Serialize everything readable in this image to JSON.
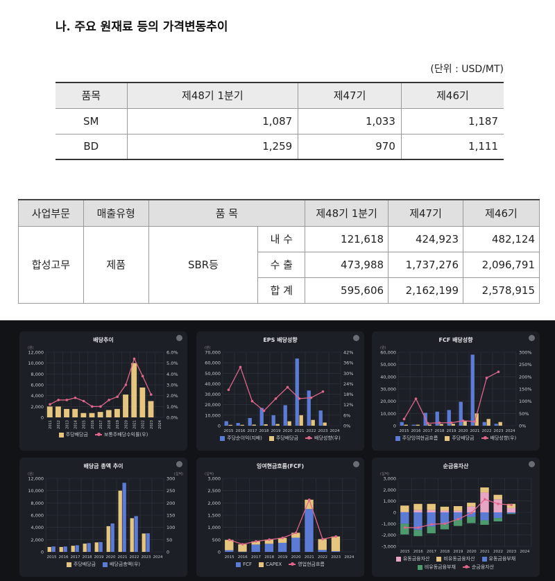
{
  "section_title": "나. 주요 원재료 등의 가격변동추이",
  "unit_note": "(단위 : USD/MT)",
  "price_table": {
    "headers": [
      "품목",
      "제48기 1분기",
      "제47기",
      "제46기"
    ],
    "rows": [
      [
        "SM",
        "1,087",
        "1,033",
        "1,187"
      ],
      [
        "BD",
        "1,259",
        "970",
        "1,111"
      ]
    ]
  },
  "sales_table": {
    "headers": [
      "사업부문",
      "매출유형",
      "품 목",
      "제48기 1분기",
      "제47기",
      "제46기"
    ],
    "segment": "합성고무",
    "type": "제품",
    "item": "SBR등",
    "rows": [
      [
        "내 수",
        "121,618",
        "424,923",
        "482,124"
      ],
      [
        "수 출",
        "473,988",
        "1,737,276",
        "2,096,791"
      ],
      [
        "합 계",
        "595,606",
        "2,162,199",
        "2,578,915"
      ]
    ]
  },
  "chart_data": [
    {
      "type": "bar",
      "title": "배당추이",
      "unit_left": "(원)",
      "rotate_x": true,
      "categories": [
        "2011",
        "2012",
        "2013",
        "2014",
        "2015",
        "2016",
        "2017",
        "2018",
        "2019",
        "2020",
        "2021",
        "2022",
        "2023",
        "2024"
      ],
      "left_axis": {
        "min": 0,
        "max": 12000,
        "step": 2000
      },
      "right_axis": {
        "min": 0,
        "max": 6,
        "step": 1,
        "suffix": "%",
        "decimals": 1
      },
      "grid": true,
      "series": [
        {
          "name": "주당배당금",
          "kind": "bar",
          "axis": "left",
          "color": "#e6c57e",
          "stack": "a",
          "values": [
            2000,
            2000,
            1550,
            1550,
            800,
            800,
            1000,
            1350,
            1550,
            4200,
            10000,
            5500,
            3000,
            null
          ]
        },
        {
          "name": "보통주배당수익률(우)",
          "kind": "line",
          "axis": "right",
          "color": "#e0668a",
          "values": [
            1.2,
            1.6,
            1.6,
            1.8,
            1.5,
            1.0,
            1.0,
            1.6,
            1.9,
            3.0,
            5.4,
            3.8,
            2.1,
            null
          ]
        }
      ]
    },
    {
      "type": "bar",
      "title": "EPS 배당성향",
      "unit_left": "(원)",
      "categories": [
        "2015",
        "2016",
        "2017",
        "2018",
        "2019",
        "2020",
        "2021",
        "2022",
        "2023",
        "2024"
      ],
      "left_axis": {
        "min": 0,
        "max": 70000,
        "step": 10000
      },
      "right_axis": {
        "min": 0,
        "max": 42,
        "step": 6,
        "suffix": "%",
        "decimals": 0
      },
      "grid": true,
      "series": [
        {
          "name": "주당순이익(지배)",
          "kind": "bar",
          "axis": "left",
          "color": "#5b7bd5",
          "stack": "a",
          "values": [
            4300,
            2600,
            7300,
            17000,
            10000,
            19500,
            64000,
            33500,
            14500,
            null
          ]
        },
        {
          "name": "주당배당금",
          "kind": "bar",
          "axis": "left",
          "color": "#e6c57e",
          "stack": "b",
          "values": [
            800,
            800,
            1000,
            1350,
            1550,
            4200,
            10000,
            5500,
            3000,
            null
          ]
        },
        {
          "name": "배당성향(우)",
          "kind": "line",
          "axis": "right",
          "color": "#e0668a",
          "values": [
            20.5,
            33.5,
            14,
            8.5,
            15.5,
            22,
            15.5,
            16,
            19.5,
            null
          ]
        }
      ]
    },
    {
      "type": "bar",
      "title": "FCF 배당성향",
      "unit_left": "(원)",
      "categories": [
        "2015",
        "2016",
        "2017",
        "2018",
        "2019",
        "2020",
        "2021",
        "2022",
        "2023",
        "2024"
      ],
      "left_axis": {
        "min": 0,
        "max": 60000,
        "step": 10000
      },
      "right_axis": {
        "min": 0,
        "max": 300,
        "step": 50,
        "suffix": "%",
        "decimals": 0
      },
      "grid": true,
      "series": [
        {
          "name": "주당잉여현금흐름",
          "kind": "bar",
          "axis": "left",
          "color": "#5b7bd5",
          "stack": "a",
          "values": [
            3000,
            800,
            10500,
            11500,
            12800,
            19500,
            58000,
            3000,
            1500,
            null
          ]
        },
        {
          "name": "주당배당금",
          "kind": "bar",
          "axis": "left",
          "color": "#e6c57e",
          "stack": "b",
          "values": [
            800,
            800,
            1000,
            1350,
            1550,
            4200,
            10000,
            5500,
            3000,
            null
          ]
        },
        {
          "name": "배당성향(우)",
          "kind": "line",
          "axis": "right",
          "color": "#e0668a",
          "values": [
            27,
            110,
            10,
            12,
            12,
            20,
            17,
            195,
            220,
            null
          ]
        }
      ]
    },
    {
      "type": "bar",
      "title": "배당금 총액 추이",
      "unit_left": "(원)",
      "unit_right": "(십억)",
      "categories": [
        "2015",
        "2016",
        "2017",
        "2018",
        "2019",
        "2020",
        "2021",
        "2022",
        "2023",
        "2024"
      ],
      "left_axis": {
        "min": 0,
        "max": 12000,
        "step": 2000
      },
      "right_axis": {
        "min": 0,
        "max": 300,
        "step": 50,
        "suffix": "",
        "decimals": 0
      },
      "grid": true,
      "series": [
        {
          "name": "주당배당금",
          "kind": "bar",
          "axis": "left",
          "color": "#e6c57e",
          "stack": "a",
          "values": [
            800,
            800,
            1000,
            1350,
            1550,
            4200,
            10000,
            5500,
            3000,
            null
          ]
        },
        {
          "name": "배당금총액(우)",
          "kind": "bar",
          "axis": "right",
          "color": "#5b7bd5",
          "stack": "b",
          "values": [
            22,
            22,
            27,
            36,
            40,
            116,
            282,
            146,
            76,
            null
          ]
        }
      ]
    },
    {
      "type": "bar",
      "title": "잉여현금흐름(FCF)",
      "unit_left": "(십억)",
      "categories": [
        "2015",
        "2016",
        "2017",
        "2018",
        "2019",
        "2020",
        "2021",
        "2022",
        "2023",
        "2024"
      ],
      "left_axis": {
        "min": 0,
        "max": 3000,
        "step": 500
      },
      "grid": true,
      "series": [
        {
          "name": "FCF",
          "kind": "bar",
          "axis": "left",
          "color": "#5b7bd5",
          "stack": "a",
          "values": [
            70,
            10,
            300,
            330,
            370,
            580,
            1750,
            80,
            30,
            null
          ]
        },
        {
          "name": "CAPEX",
          "kind": "bar",
          "axis": "left",
          "color": "#e6c57e",
          "stack": "a",
          "values": [
            420,
            300,
            130,
            170,
            200,
            200,
            380,
            440,
            600,
            null
          ]
        },
        {
          "name": "영업현금흐름",
          "kind": "line",
          "axis": "left",
          "color": "#e0668a",
          "values": [
            490,
            310,
            430,
            500,
            570,
            780,
            2130,
            520,
            630,
            null
          ]
        }
      ]
    },
    {
      "type": "bar",
      "title": "순금융자산",
      "unit_left": "(십억)",
      "categories": [
        "2015",
        "2016",
        "2017",
        "2018",
        "2019",
        "2020",
        "2021",
        "2022",
        "2023",
        "2024"
      ],
      "left_axis": {
        "min": -3000,
        "max": 3000,
        "step": 1000
      },
      "grid": true,
      "series": [
        {
          "name": "유동금융자산",
          "kind": "bar",
          "axis": "left",
          "color": "#e8a6c4",
          "stack": "a",
          "values": [
            50,
            200,
            200,
            150,
            150,
            500,
            1750,
            1150,
            400,
            null
          ]
        },
        {
          "name": "비유동금융자산",
          "kind": "bar",
          "axis": "left",
          "color": "#e6c57e",
          "stack": "a",
          "values": [
            550,
            550,
            550,
            350,
            400,
            350,
            450,
            400,
            350,
            null
          ]
        },
        {
          "name": "유동금융부채",
          "kind": "bar",
          "axis": "left",
          "color": "#5b7bd5",
          "stack": "a",
          "values": [
            -1000,
            -1550,
            -1250,
            -1050,
            -650,
            -400,
            -700,
            -500,
            -100,
            null
          ]
        },
        {
          "name": "비유동금융부채",
          "kind": "bar",
          "axis": "left",
          "color": "#4e9a6f",
          "stack": "a",
          "values": [
            -950,
            -550,
            -600,
            -450,
            -550,
            -550,
            -400,
            -300,
            -50,
            null
          ]
        },
        {
          "name": "순금융자산",
          "kind": "line",
          "axis": "left",
          "color": "#e0668a",
          "values": [
            -1350,
            -1350,
            -1050,
            -1000,
            -600,
            -50,
            1150,
            750,
            650,
            null
          ]
        }
      ]
    }
  ]
}
